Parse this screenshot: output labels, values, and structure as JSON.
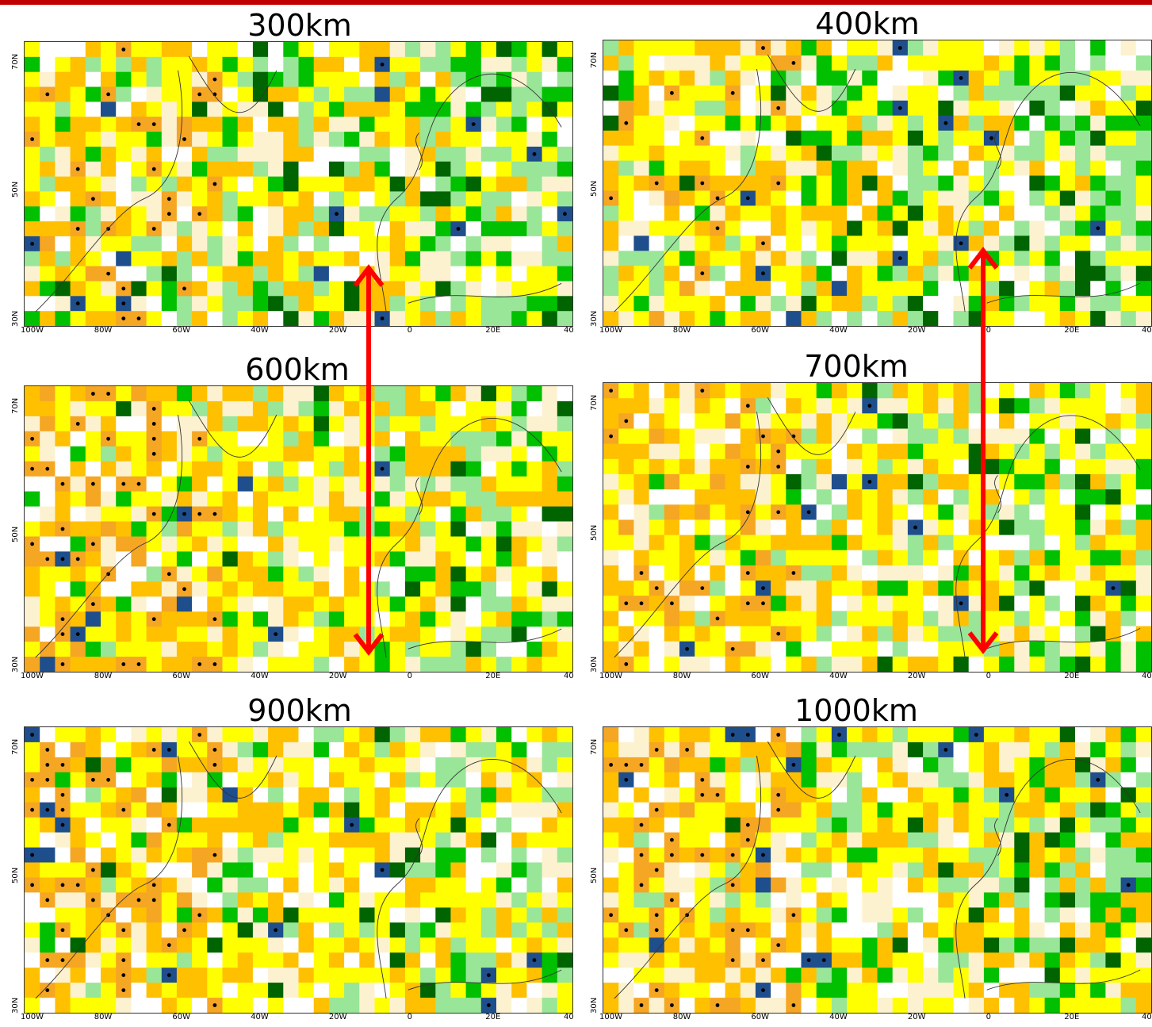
{
  "panels": [
    {
      "title": "300km",
      "seed": 11,
      "dots": 0.12,
      "green": 0.3
    },
    {
      "title": "400km",
      "seed": 23,
      "dots": 0.1,
      "green": 0.3
    },
    {
      "title": "600km",
      "seed": 37,
      "dots": 0.12,
      "green": 0.22
    },
    {
      "title": "700km",
      "seed": 41,
      "dots": 0.1,
      "green": 0.22
    },
    {
      "title": "900km",
      "seed": 53,
      "dots": 0.13,
      "green": 0.18
    },
    {
      "title": "1000km",
      "seed": 67,
      "dots": 0.12,
      "green": 0.18
    }
  ],
  "lon_ticks": [
    "100W",
    "80W",
    "60W",
    "40W",
    "20W",
    "0",
    "20E",
    "40"
  ],
  "lat_ticks": [
    "30N",
    "50N",
    "70N"
  ],
  "colors": {
    "dark_orange": "#f5a623",
    "orange": "#ffc000",
    "yellow": "#ffff00",
    "cream": "#fdf2d0",
    "white": "#ffffff",
    "light_green": "#99e699",
    "green": "#00c000",
    "dark_green": "#006400",
    "navy": "#1f4e8c",
    "pink": "#ffc0cb",
    "arrow": "#ff0000",
    "topbar": "#c00000"
  }
}
